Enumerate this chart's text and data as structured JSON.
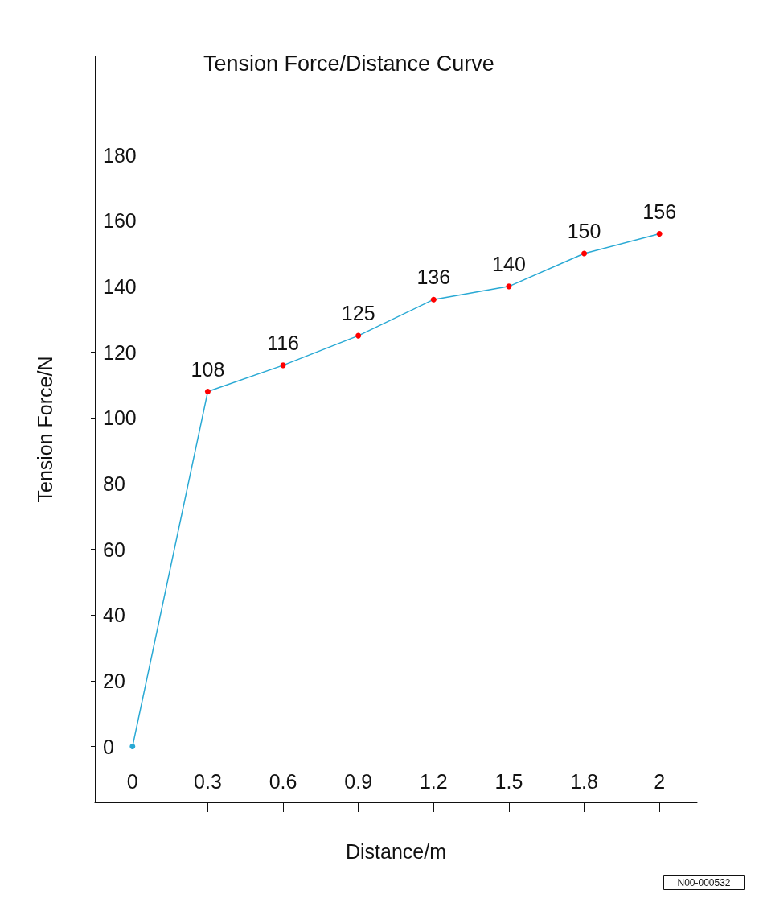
{
  "chart_data": {
    "type": "line",
    "title": "Tension Force/Distance Curve",
    "xlabel": "Distance/m",
    "ylabel": "Tension Force/N",
    "categories": [
      "0",
      "0.3",
      "0.6",
      "0.9",
      "1.2",
      "1.5",
      "1.8",
      "2"
    ],
    "series": [
      {
        "color": "#29a9d4",
        "colors": [
          "#29a9d4",
          "#ff0000",
          "#ff0000",
          "#ff0000",
          "#ff0000",
          "#ff0000",
          "#ff0000",
          "#ff0000"
        ],
        "values": [
          0,
          108,
          116,
          125,
          136,
          140,
          150,
          156
        ],
        "value_labels": [
          null,
          "108",
          "116",
          "125",
          "136",
          "140",
          "150",
          "156"
        ]
      }
    ],
    "ylim": [
      -17,
      210
    ],
    "yticks": [
      0,
      20,
      40,
      60,
      80,
      100,
      120,
      140,
      160,
      180
    ],
    "grid": false,
    "marker": "circle",
    "line_style": "solid",
    "annotations": [
      "N00-000532"
    ]
  }
}
